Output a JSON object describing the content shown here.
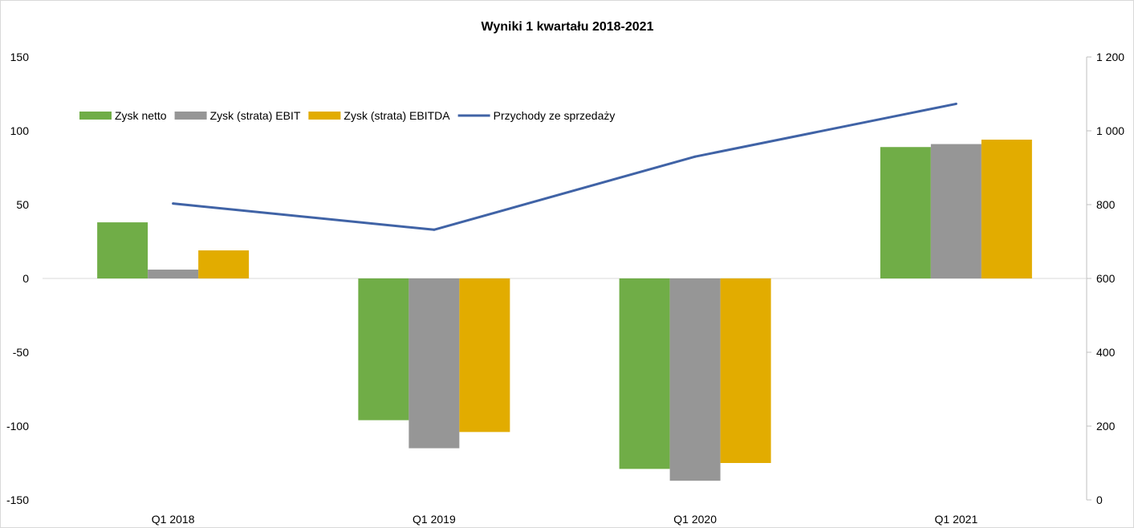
{
  "chart_data": {
    "type": "bar",
    "title": "Wyniki 1 kwartału 2018-2021",
    "categories": [
      "Q1 2018",
      "Q1 2019",
      "Q1 2020",
      "Q1 2021"
    ],
    "series": [
      {
        "name": "Zysk netto",
        "kind": "bar",
        "axis": "left",
        "color": "#70ad47",
        "values": [
          38,
          -96,
          -129,
          89
        ]
      },
      {
        "name": "Zysk (strata) EBIT",
        "kind": "bar",
        "axis": "left",
        "color": "#969696",
        "values": [
          6,
          -115,
          -137,
          91
        ]
      },
      {
        "name": "Zysk (strata) EBITDA",
        "kind": "bar",
        "axis": "left",
        "color": "#e2ac00",
        "values": [
          19,
          -104,
          -125,
          94
        ]
      },
      {
        "name": "Przychody ze sprzedaży",
        "kind": "line",
        "axis": "right",
        "color": "#4063a6",
        "values": [
          803,
          732,
          930,
          1073
        ]
      }
    ],
    "y_left": {
      "range": [
        -150,
        150
      ],
      "ticks": [
        150,
        100,
        50,
        0,
        -50,
        -100,
        -150
      ],
      "tick_labels": [
        "150",
        "100",
        "50",
        "0",
        "-50",
        "-100",
        "-150"
      ]
    },
    "y_right": {
      "range": [
        0,
        1200
      ],
      "ticks": [
        1200,
        1000,
        800,
        600,
        400,
        200,
        0
      ],
      "tick_labels": [
        "1 200",
        "1 000",
        "800",
        "600",
        "400",
        "200",
        "0"
      ]
    },
    "grid": false,
    "legend_position": "top-left"
  }
}
